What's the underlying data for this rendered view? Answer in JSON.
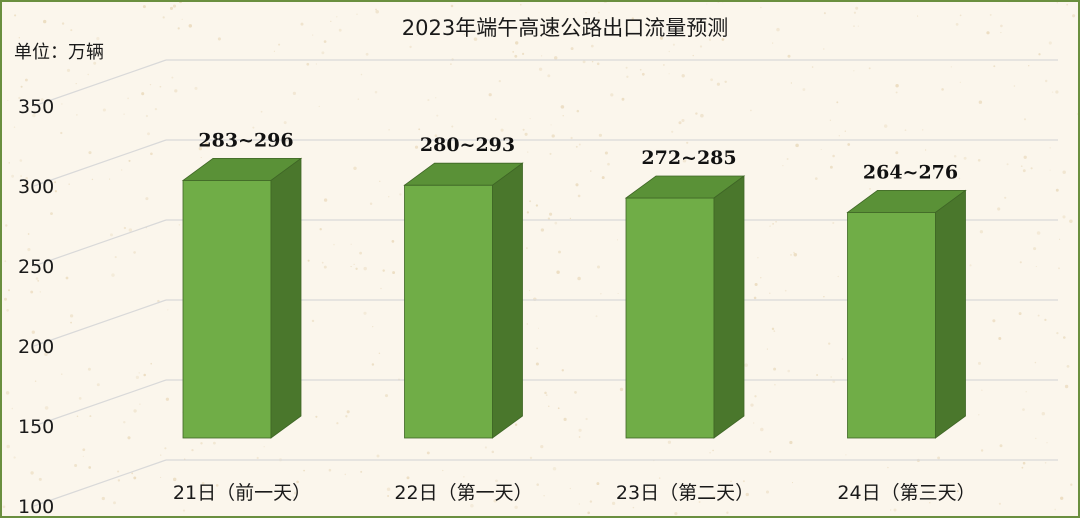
{
  "chart_data": {
    "type": "bar",
    "title": "2023年端午高速公路出口流量预测",
    "ylabel": "单位：万辆",
    "xlabel": "",
    "categories": [
      "21日（前一天）",
      "22日（第一天）",
      "23日（第二天）",
      "24日（第三天）"
    ],
    "values": [
      296,
      293,
      285,
      276
    ],
    "data_labels": [
      "283~296",
      "280~293",
      "272~285",
      "264~276"
    ],
    "ylim": [
      100,
      350
    ],
    "yticks": [
      100,
      150,
      200,
      250,
      300,
      350
    ],
    "grid": true,
    "legend": "none",
    "bar_style": "3d",
    "colors": {
      "front": "#70ad47",
      "top": "#5a9137",
      "side": "#4a772c",
      "edge": "#3f6626",
      "grid": "#d9d9d9",
      "background": "#fbf6ec",
      "speckle": "#e9d9bb",
      "border": "#6a8f3f"
    }
  }
}
